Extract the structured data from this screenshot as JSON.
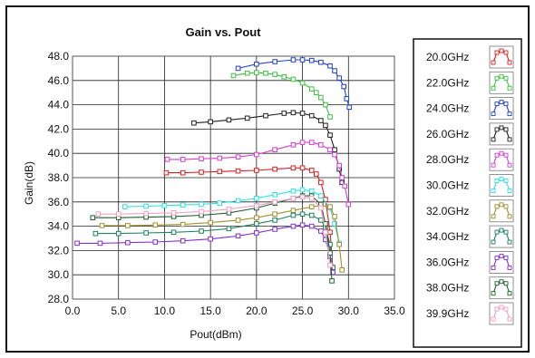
{
  "chart_data": {
    "type": "line",
    "title": "Gain vs. Pout",
    "xlabel": "Pout(dBm)",
    "ylabel": "Gain(dB)",
    "xlim": [
      0,
      35
    ],
    "ylim": [
      28,
      48
    ],
    "xticks": [
      "0.0",
      "5.0",
      "10.0",
      "15.0",
      "20.0",
      "25.0",
      "30.0",
      "35.0"
    ],
    "yticks": [
      "28.0",
      "30.0",
      "32.0",
      "34.0",
      "36.0",
      "38.0",
      "40.0",
      "42.0",
      "44.0",
      "46.0",
      "48.0"
    ],
    "grid": true,
    "legend_position": "right",
    "series": [
      {
        "name": "20.0GHz",
        "color": "#d62020",
        "x": [
          10.2,
          12,
          14,
          16,
          18,
          20,
          22,
          24,
          25,
          26,
          26.5,
          27,
          27.5,
          28,
          28.3
        ],
        "y": [
          38.4,
          38.4,
          38.45,
          38.5,
          38.55,
          38.6,
          38.7,
          38.8,
          38.8,
          38.6,
          38.3,
          37.6,
          36.2,
          33.5,
          30.6
        ]
      },
      {
        "name": "22.0GHz",
        "color": "#40c040",
        "x": [
          17.5,
          19,
          20,
          21,
          22,
          23,
          24,
          25,
          26,
          26.5,
          27,
          27.5,
          28
        ],
        "y": [
          46.4,
          46.6,
          46.65,
          46.6,
          46.5,
          46.3,
          46.1,
          45.8,
          45.3,
          45.0,
          44.6,
          44.0,
          43.0
        ]
      },
      {
        "name": "24.0GHz",
        "color": "#2040d0",
        "x": [
          18,
          20,
          22,
          24,
          25,
          26,
          27,
          28,
          28.5,
          29,
          29.5,
          29.8,
          30.1
        ],
        "y": [
          47.0,
          47.35,
          47.55,
          47.7,
          47.7,
          47.65,
          47.5,
          47.2,
          46.8,
          46.2,
          45.5,
          44.5,
          43.8
        ]
      },
      {
        "name": "26.0GHz",
        "color": "#202020",
        "x": [
          13.2,
          15,
          17,
          19,
          21,
          23,
          24,
          25,
          26,
          27,
          27.5,
          28,
          28.5,
          29,
          29.3
        ],
        "y": [
          42.5,
          42.6,
          42.75,
          42.9,
          43.1,
          43.3,
          43.35,
          43.3,
          43.1,
          42.7,
          42.3,
          41.5,
          40.3,
          38.7,
          37.6
        ]
      },
      {
        "name": "28.0GHz",
        "color": "#d040d0",
        "x": [
          10.3,
          12,
          14,
          16,
          18,
          20,
          22,
          24,
          25,
          26,
          27,
          28,
          28.5,
          29,
          29.3,
          29.6,
          30
        ],
        "y": [
          39.5,
          39.5,
          39.55,
          39.6,
          39.7,
          39.9,
          40.3,
          40.7,
          40.9,
          40.9,
          40.7,
          40.3,
          39.9,
          39.0,
          38.0,
          37.3,
          35.8
        ]
      },
      {
        "name": "30.0GHz",
        "color": "#30e0e0",
        "x": [
          5.7,
          8,
          10,
          12,
          14,
          16,
          18,
          20,
          22,
          24,
          25,
          26,
          27,
          28,
          28.5,
          29
        ],
        "y": [
          35.6,
          35.65,
          35.7,
          35.75,
          35.8,
          35.9,
          36.1,
          36.3,
          36.6,
          36.9,
          37.0,
          36.9,
          36.5,
          35.5,
          34.2,
          32.6
        ]
      },
      {
        "name": "32.0GHz",
        "color": "#a09030",
        "x": [
          3.2,
          6,
          9,
          12,
          15,
          18,
          20,
          22,
          24,
          26,
          27,
          28,
          28.5,
          29,
          29.3
        ],
        "y": [
          34.05,
          34.05,
          34.1,
          34.15,
          34.3,
          34.5,
          34.7,
          35.0,
          35.3,
          35.6,
          35.7,
          35.6,
          34.8,
          32.5,
          30.4
        ]
      },
      {
        "name": "34.0GHz",
        "color": "#208060",
        "x": [
          2.5,
          5,
          8,
          11,
          14,
          17,
          20,
          22,
          24,
          25,
          26,
          27,
          27.5,
          28,
          28.3
        ],
        "y": [
          33.4,
          33.4,
          33.45,
          33.5,
          33.6,
          33.8,
          34.2,
          34.5,
          34.9,
          35.0,
          34.9,
          34.5,
          33.9,
          32.5,
          30.6
        ]
      },
      {
        "name": "36.0GHz",
        "color": "#8030d0",
        "x": [
          0.5,
          3,
          6,
          9,
          12,
          15,
          18,
          20,
          22,
          24,
          25,
          26,
          27,
          27.5,
          28,
          28.3
        ],
        "y": [
          32.6,
          32.6,
          32.65,
          32.7,
          32.8,
          32.95,
          33.2,
          33.45,
          33.75,
          34.0,
          34.1,
          34.0,
          33.6,
          32.9,
          31.5,
          30.2
        ]
      },
      {
        "name": "38.0GHz",
        "color": "#206030",
        "x": [
          2.2,
          5,
          8,
          11,
          14,
          17,
          20,
          22,
          24,
          25,
          26,
          27,
          27.5,
          28,
          28.2
        ],
        "y": [
          34.7,
          34.7,
          34.75,
          34.8,
          34.9,
          35.1,
          35.5,
          35.9,
          36.3,
          36.5,
          36.5,
          35.8,
          34.2,
          31.8,
          29.5
        ]
      },
      {
        "name": "39.9GHz",
        "color": "#f0a0c0",
        "x": [
          2.8,
          5,
          8,
          11,
          14,
          17,
          20,
          22,
          24,
          25,
          26,
          27,
          27.5,
          28
        ],
        "y": [
          35.0,
          35.0,
          35.05,
          35.1,
          35.2,
          35.4,
          35.7,
          36.0,
          36.3,
          36.4,
          36.3,
          35.5,
          33.5,
          30.8
        ]
      }
    ]
  }
}
